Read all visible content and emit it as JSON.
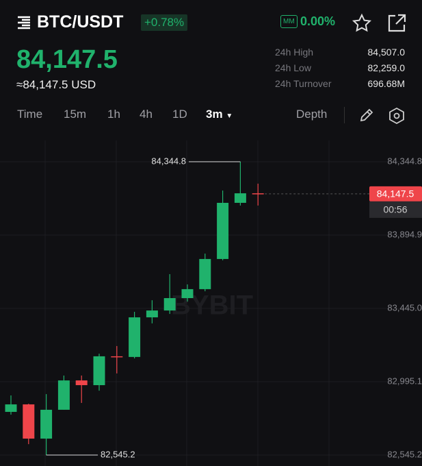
{
  "header": {
    "symbol": "BTC/USDT",
    "change": "+0.78%",
    "mm_badge": "MM",
    "mm_value": "0.00%",
    "price": "84,147.5",
    "price_usd": "≈84,147.5 USD",
    "stats": [
      {
        "label": "24h High",
        "value": "84,507.0"
      },
      {
        "label": "24h Low",
        "value": "82,259.0"
      },
      {
        "label": "24h Turnover",
        "value": "696.68M"
      }
    ]
  },
  "tabs": [
    "Time",
    "15m",
    "1h",
    "4h",
    "1D",
    "3m",
    "Depth"
  ],
  "chart_data": {
    "type": "candlestick",
    "watermark": "BYBIT",
    "up_color": "#20b26c",
    "down_color": "#ef454a",
    "grid": true,
    "ylim": [
      82478,
      84475
    ],
    "yticks": [
      {
        "value": 84344.8,
        "label": "84,344.8"
      },
      {
        "value": 83894.9,
        "label": "83,894.9"
      },
      {
        "value": 83445.0,
        "label": "83,445.0"
      },
      {
        "value": 82995.1,
        "label": "82,995.1"
      },
      {
        "value": 82545.2,
        "label": "82,545.2"
      }
    ],
    "candles": [
      {
        "open": 82810,
        "high": 82911,
        "low": 82793,
        "close": 82856
      },
      {
        "open": 82856,
        "high": 82860,
        "low": 82612,
        "close": 82646
      },
      {
        "open": 82646,
        "high": 82919,
        "low": 82545.2,
        "close": 82823
      },
      {
        "open": 82823,
        "high": 83033,
        "low": 82823,
        "close": 83003
      },
      {
        "open": 83003,
        "high": 83033,
        "low": 82865,
        "close": 82974
      },
      {
        "open": 82974,
        "high": 83167,
        "low": 82940,
        "close": 83151
      },
      {
        "open": 83151,
        "high": 83214,
        "low": 83046,
        "close": 83147
      },
      {
        "open": 83147,
        "high": 83424,
        "low": 83138,
        "close": 83390
      },
      {
        "open": 83390,
        "high": 83495,
        "low": 83353,
        "close": 83432
      },
      {
        "open": 83432,
        "high": 83655,
        "low": 83411,
        "close": 83508
      },
      {
        "open": 83508,
        "high": 83592,
        "low": 83487,
        "close": 83563
      },
      {
        "open": 83563,
        "high": 83781,
        "low": 83550,
        "close": 83748
      },
      {
        "open": 83748,
        "high": 84168,
        "low": 83740,
        "close": 84092.5
      },
      {
        "open": 84092.5,
        "high": 84344.8,
        "low": 84076,
        "close": 84151
      },
      {
        "open": 84151,
        "high": 84210,
        "low": 84076,
        "close": 84147.5
      }
    ],
    "max_marker": {
      "candle": 13,
      "value": 84344.8,
      "label": "84,344.8"
    },
    "min_marker": {
      "candle": 2,
      "value": 82545.2,
      "label": "82,545.2"
    },
    "last_price": {
      "value": 84147.5,
      "label": "84,147.5"
    },
    "countdown": "00:56"
  }
}
